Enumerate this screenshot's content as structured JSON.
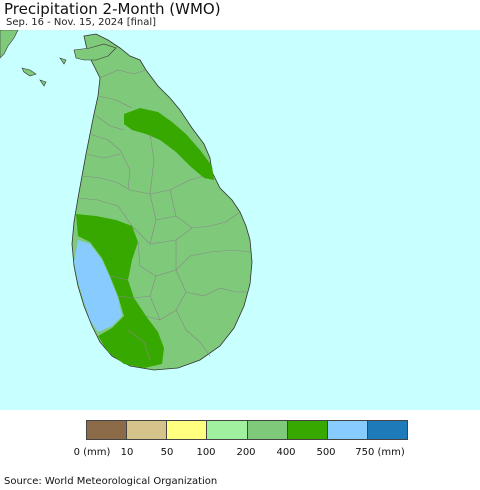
{
  "header": {
    "title": "Precipitation 2-Month (WMO)",
    "subtitle": "Sep. 16 - Nov. 15, 2024 [final]"
  },
  "map": {
    "ocean_color": "#c8ffff",
    "land_color": "#7fc97a",
    "boundary_color": "#888888",
    "regions": [
      {
        "name": "200-400",
        "color": "#7fc97a"
      },
      {
        "name": "400-500",
        "color": "#37a800"
      },
      {
        "name": "500-750",
        "color": "#88ccff"
      }
    ]
  },
  "legend": {
    "labels": [
      "0 (mm)",
      "10",
      "50",
      "100",
      "200",
      "400",
      "500",
      "750 (mm)"
    ],
    "colors": [
      "#8c6c48",
      "#d4c48c",
      "#ffff80",
      "#a0f0a0",
      "#7fc97a",
      "#37a800",
      "#88ccff",
      "#1e7ab8"
    ]
  },
  "footer": {
    "source": "Source: World Meteorological Organization"
  }
}
